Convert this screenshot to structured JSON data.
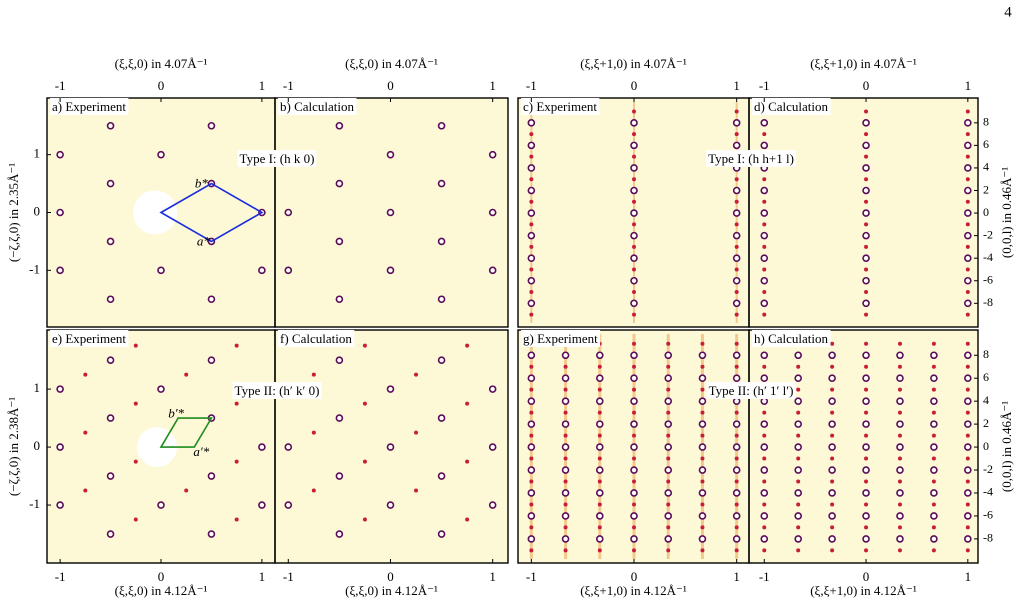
{
  "page_number": "4",
  "figure": {
    "panels": [
      {
        "label": "a) Experiment"
      },
      {
        "label": "b) Calculation"
      },
      {
        "label": "c) Experiment"
      },
      {
        "label": "d) Calculation"
      },
      {
        "label": "e) Experiment"
      },
      {
        "label": "f) Calculation"
      },
      {
        "label": "g) Experiment"
      },
      {
        "label": "h) Calculation"
      }
    ],
    "type_labels": [
      "Type I: (h k 0)",
      "Type I: (h h+1 l)",
      "Type II: (h′ k′ 0)",
      "Type II: (h′ 1′ l′)"
    ],
    "vector_labels": {
      "type_i": [
        "b*",
        "a*"
      ],
      "type_ii": [
        "b′*",
        "a′*"
      ]
    },
    "axes": {
      "top": [
        {
          "label": "(ξ,ξ,0) in 4.07Å⁻¹",
          "ticks": [
            -1,
            0,
            1
          ],
          "lim": [
            -1.13,
            1.13
          ]
        },
        {
          "label": "(ξ,ξ,0) in 4.07Å⁻¹",
          "ticks": [
            -1,
            0,
            1
          ],
          "lim": [
            -1.13,
            1.15
          ]
        },
        {
          "label": "(ξ,ξ+1,0) in 4.07Å⁻¹",
          "ticks": [
            -1,
            0,
            1
          ],
          "lim": [
            -1.13,
            1.12
          ]
        },
        {
          "label": "(ξ,ξ+1,0) in 4.07Å⁻¹",
          "ticks": [
            -1,
            0,
            1
          ],
          "lim": [
            -1.15,
            1.1
          ]
        }
      ],
      "bottom": [
        {
          "label": "(ξ,ξ,0) in 4.12Å⁻¹",
          "ticks": [
            -1,
            0,
            1
          ],
          "lim": [
            -1.13,
            1.13
          ]
        },
        {
          "label": "(ξ,ξ,0) in 4.12Å⁻¹",
          "ticks": [
            -1,
            0,
            1
          ],
          "lim": [
            -1.13,
            1.15
          ]
        },
        {
          "label": "(ξ,ξ+1,0) in 4.12Å⁻¹",
          "ticks": [
            -1,
            0,
            1
          ],
          "lim": [
            -1.13,
            1.12
          ]
        },
        {
          "label": "(ξ,ξ+1,0) in 4.12Å⁻¹",
          "ticks": [
            -1,
            0,
            1
          ],
          "lim": [
            -1.15,
            1.1
          ]
        }
      ],
      "left": [
        {
          "label": "(−ζ,ζ,0) in 2.35Å⁻¹",
          "ticks": [
            1,
            0,
            -1
          ],
          "lim": [
            -1.98,
            1.98
          ]
        },
        {
          "label": "(−ζ,ζ,0) in 2.38Å⁻¹",
          "ticks": [
            1,
            0,
            -1
          ],
          "lim": [
            -2.0,
            2.02
          ]
        }
      ],
      "right": [
        {
          "label": "(0,0,l) in 0.46Å⁻¹",
          "ticks": [
            8,
            6,
            4,
            2,
            0,
            -2,
            -4,
            -6,
            -8
          ],
          "lim": [
            -10.1,
            10.2
          ]
        },
        {
          "label": "(0,0,l) in 0.46Å⁻¹",
          "ticks": [
            8,
            6,
            4,
            2,
            0,
            -2,
            -4,
            -6,
            -8
          ],
          "lim": [
            -10.1,
            10.2
          ]
        }
      ]
    }
  }
}
